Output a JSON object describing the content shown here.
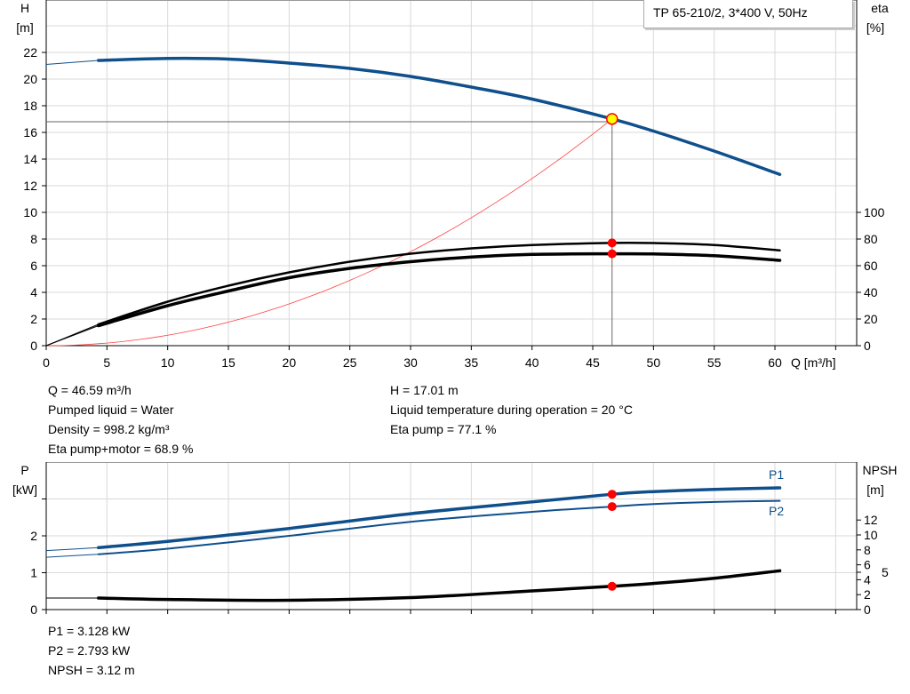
{
  "title": "TP 65-210/2, 3*400 V, 50Hz",
  "colors": {
    "head": "#0f4f8c",
    "power": "#0f4f8c",
    "eta": "#000000",
    "npsh": "#000000",
    "system": "#ff4040",
    "point": "#ff0000",
    "duty_point": "#ffff00",
    "grid": "#d9d9d9"
  },
  "chart_data": [
    {
      "type": "line",
      "x_axis": {
        "label": "Q [m³/h]",
        "range": [
          0,
          65
        ],
        "ticks": [
          0,
          5,
          10,
          15,
          20,
          25,
          30,
          35,
          40,
          45,
          50,
          55,
          60
        ]
      },
      "y_axis_left": {
        "label_top": "H",
        "label_unit": "[m]",
        "range": [
          0,
          24
        ],
        "ticks": [
          0,
          2,
          4,
          6,
          8,
          10,
          12,
          14,
          16,
          18,
          20,
          22
        ]
      },
      "y_axis_right": {
        "label_top": "eta",
        "label_unit": "[%]",
        "range": [
          0,
          100
        ],
        "ticks": [
          0,
          20,
          40,
          60,
          80,
          100
        ]
      },
      "grid": true,
      "series": [
        {
          "key": "head",
          "axis": "left",
          "x": [
            4.3,
            10,
            15,
            20,
            25,
            30,
            35,
            40,
            46.59,
            50,
            55,
            60.4
          ],
          "y": [
            21.4,
            21.55,
            21.5,
            21.2,
            20.8,
            20.2,
            19.4,
            18.5,
            17.01,
            16.1,
            14.6,
            12.85
          ],
          "ext_x": [
            0,
            4.3
          ],
          "ext_y": [
            21.1,
            21.4
          ]
        },
        {
          "key": "eta_pump",
          "axis": "right",
          "x": [
            4.3,
            10,
            15,
            20,
            25,
            30,
            35,
            40,
            46.59,
            50,
            55,
            60.4
          ],
          "y": [
            16,
            33,
            45,
            55,
            63,
            69,
            73,
            75.5,
            77.1,
            77,
            75.5,
            71.5
          ],
          "ext_x": [
            0,
            4.3
          ],
          "ext_y": [
            0,
            16
          ]
        },
        {
          "key": "eta_pump_motor",
          "axis": "right",
          "x": [
            4.3,
            10,
            15,
            20,
            25,
            30,
            35,
            40,
            46.59,
            50,
            55,
            60.4
          ],
          "y": [
            15,
            30,
            41,
            51,
            58,
            63,
            66.5,
            68.5,
            68.9,
            68.8,
            67.5,
            64
          ],
          "ext_x": [
            0,
            4.3
          ],
          "ext_y": [
            0,
            15
          ]
        },
        {
          "key": "system_curve",
          "axis": "left",
          "formula": "H = 17.01*(Q/46.59)^2",
          "x_range": [
            0,
            46.59
          ]
        }
      ],
      "duty_point": {
        "Q": 46.59,
        "H": 17.01,
        "eta_pump": 77.1,
        "eta_pump_motor": 68.9
      }
    },
    {
      "type": "line",
      "x_axis": {
        "range": [
          0,
          65
        ],
        "ticks": [
          0,
          5,
          10,
          15,
          20,
          25,
          30,
          35,
          40,
          45,
          50,
          55,
          60
        ]
      },
      "y_axis_left": {
        "label_top": "P",
        "label_unit": "[kW]",
        "range": [
          0,
          4
        ],
        "ticks": [
          0,
          1,
          2
        ],
        "gridlines": [
          1,
          2,
          3
        ]
      },
      "y_axis_right": {
        "label_top": "NPSH",
        "label_unit": "[m]",
        "ticks": [
          0,
          2,
          4,
          5,
          6,
          8,
          10,
          12
        ]
      },
      "grid": true,
      "series": [
        {
          "key": "p1",
          "name": "P1",
          "axis": "left",
          "x": [
            4.3,
            10,
            20,
            30,
            40,
            46.59,
            50,
            55,
            60.4
          ],
          "y": [
            1.68,
            1.85,
            2.2,
            2.6,
            2.92,
            3.128,
            3.2,
            3.26,
            3.3
          ],
          "ext_x": [
            0,
            4.3
          ],
          "ext_y": [
            1.6,
            1.68
          ]
        },
        {
          "key": "p2",
          "name": "P2",
          "axis": "left",
          "x": [
            4.3,
            10,
            20,
            30,
            40,
            46.59,
            50,
            55,
            60.4
          ],
          "y": [
            1.5,
            1.65,
            2.0,
            2.38,
            2.65,
            2.793,
            2.86,
            2.92,
            2.95
          ],
          "ext_x": [
            0,
            4.3
          ],
          "ext_y": [
            1.42,
            1.5
          ]
        },
        {
          "key": "npsh",
          "axis": "right",
          "x": [
            4.3,
            10,
            20,
            30,
            40,
            46.59,
            50,
            55,
            60.4
          ],
          "y": [
            1.55,
            1.35,
            1.25,
            1.6,
            2.5,
            3.12,
            3.5,
            4.2,
            5.2
          ],
          "ext_x": [
            0,
            4.3
          ],
          "ext_y": [
            1.55,
            1.55
          ]
        }
      ],
      "duty_point": {
        "Q": 46.59,
        "P1": 3.128,
        "P2": 2.793,
        "NPSH": 3.12
      }
    }
  ],
  "info_top": {
    "q": "Q = 46.59 m³/h",
    "liquid": "Pumped liquid = Water",
    "density": "Density = 998.2 kg/m³",
    "eta_pm": "Eta pump+motor = 68.9 %",
    "h": "H = 17.01 m",
    "temp": "Liquid temperature during operation = 20 °C",
    "eta_p": "Eta pump = 77.1 %"
  },
  "info_bottom": {
    "p1": "P1 = 3.128 kW",
    "p2": "P2 = 2.793 kW",
    "npsh": "NPSH = 3.12 m"
  }
}
